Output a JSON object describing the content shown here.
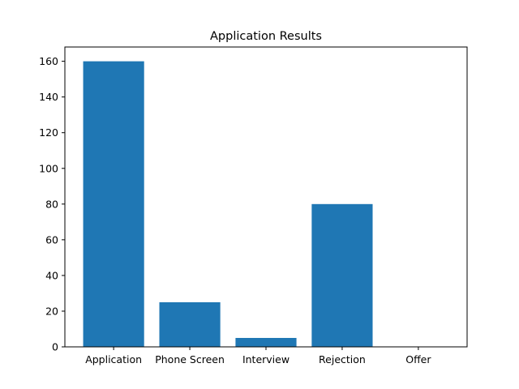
{
  "chart_data": {
    "type": "bar",
    "title": "Application Results",
    "xlabel": "",
    "ylabel": "",
    "categories": [
      "Application",
      "Phone Screen",
      "Interview",
      "Rejection",
      "Offer"
    ],
    "values": [
      160,
      25,
      5,
      80,
      0
    ],
    "ylim": [
      0,
      168
    ],
    "yticks": [
      0,
      20,
      40,
      60,
      80,
      100,
      120,
      140,
      160
    ],
    "grid": false,
    "legend": "none",
    "bar_color": "#1f77b4"
  }
}
